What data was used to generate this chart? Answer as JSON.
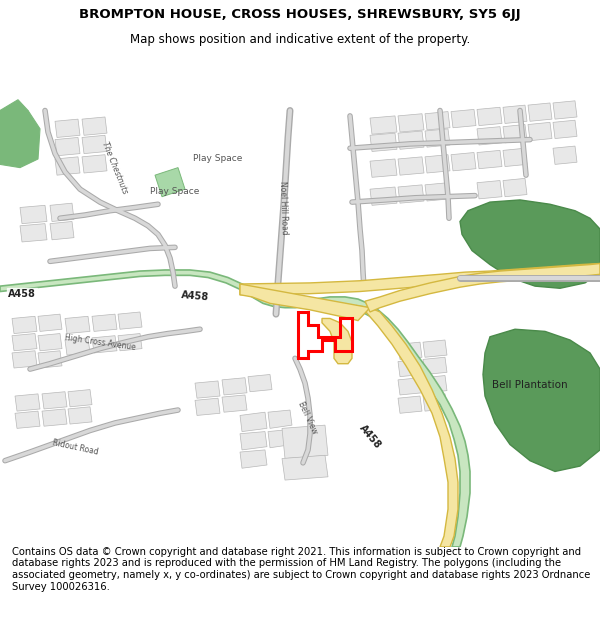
{
  "title": "BROMPTON HOUSE, CROSS HOUSES, SHREWSBURY, SY5 6JJ",
  "subtitle": "Map shows position and indicative extent of the property.",
  "footer_lines": [
    "Contains OS data © Crown copyright and database right 2021. This information is subject to Crown copyright and database rights 2023 and is reproduced with the permission of",
    "HM Land Registry. The polygons (including the associated geometry, namely x, y co-ordinates) are subject to Crown copyright and database rights 2023 Ordnance Survey",
    "100026316."
  ],
  "bg_color": "#ffffff",
  "map_bg": "#ffffff",
  "building_color": "#e8e8e8",
  "building_edge": "#b8b8b8",
  "green_dark": "#5a9a5a",
  "green_mid": "#7ab87a",
  "green_light": "#c8e6c0",
  "road_yellow_fill": "#f5e6a3",
  "road_yellow_edge": "#d4b840",
  "road_gray_fill": "#d8d8d8",
  "road_gray_edge": "#aaaaaa",
  "plot_color": "#ff0000"
}
